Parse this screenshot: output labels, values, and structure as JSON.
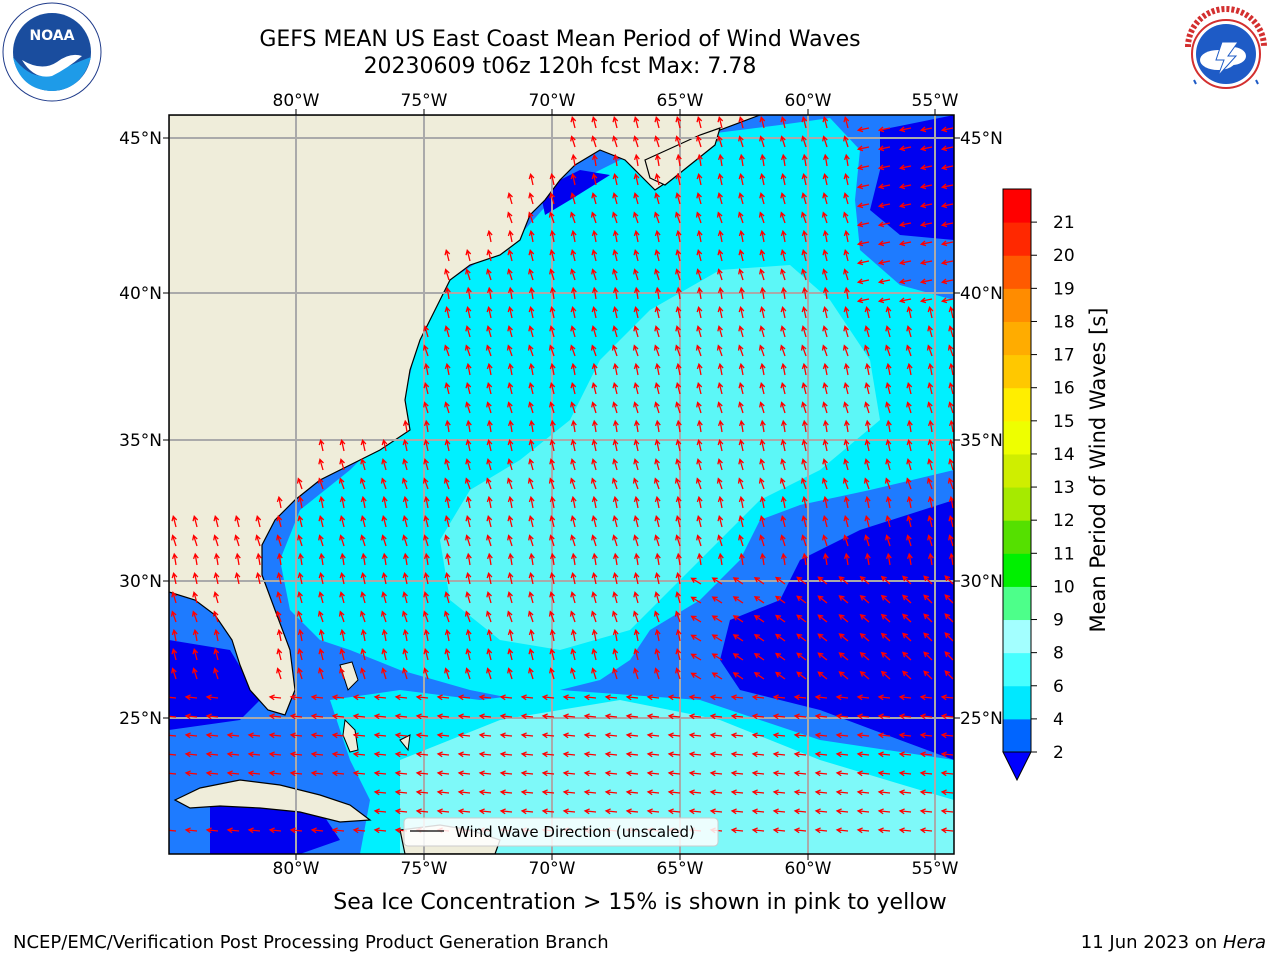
{
  "header": {
    "title_line1": "GEFS MEAN US East Coast Mean Period of Wind Waves",
    "title_line2": "20230609 t06z 120h fcst   Max: 7.78"
  },
  "logos": {
    "left": {
      "icon": "noaa-logo",
      "text": "NOAA",
      "ring_text": "NATIONAL OCEANIC AND ATMOSPHERIC ADMINISTRATION · U.S. DEPARTMENT OF COMMERCE"
    },
    "right": {
      "icon": "nws-logo",
      "ring_text": "NATIONAL WEATHER SERVICE"
    }
  },
  "map": {
    "lon_labels": [
      "80°W",
      "75°W",
      "70°W",
      "65°W",
      "60°W",
      "55°W"
    ],
    "lat_labels": [
      "45°N",
      "40°N",
      "35°N",
      "30°N",
      "25°N"
    ],
    "legend_text": "Wind Wave Direction (unscaled)",
    "arrow_color": "#ff0000",
    "land_color": "#efedda",
    "grid": true
  },
  "colorbar": {
    "label": "Mean Period of Wind Waves [s]",
    "ticks": [
      "2",
      "4",
      "6",
      "8",
      "9",
      "10",
      "11",
      "12",
      "13",
      "14",
      "15",
      "16",
      "17",
      "18",
      "19",
      "20",
      "21"
    ],
    "colors": [
      "#0065ff",
      "#00e8ff",
      "#47ffff",
      "#a3ffff",
      "#4dff8a",
      "#00f000",
      "#55e000",
      "#a6ea00",
      "#cfee00",
      "#eeff00",
      "#ffee00",
      "#ffc800",
      "#ffac00",
      "#ff8c00",
      "#ff5a00",
      "#ff2800",
      "#ff0000"
    ],
    "extend_color": "#0000ff"
  },
  "subtitle": "Sea Ice Concentration > 15% is shown in pink to yellow",
  "footer": {
    "left": "NCEP/EMC/Verification Post Processing Product Generation Branch",
    "right_date": "11 Jun 2023 on ",
    "right_host": "Hera"
  }
}
